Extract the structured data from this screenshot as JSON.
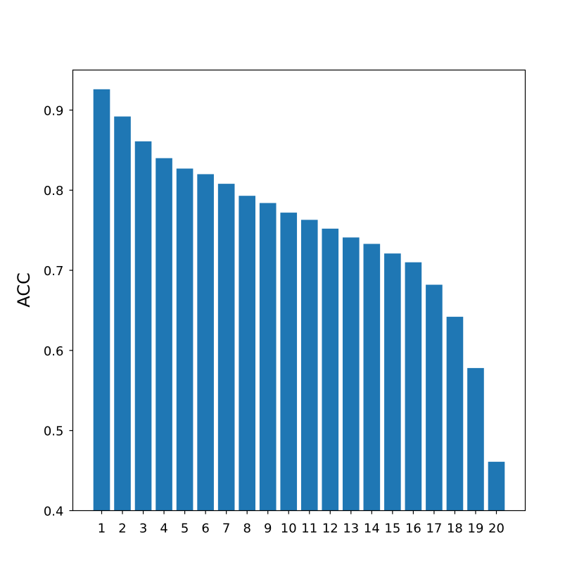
{
  "chart_data": {
    "type": "bar",
    "title": "",
    "xlabel": "",
    "ylabel": "ACC",
    "categories": [
      "1",
      "2",
      "3",
      "4",
      "5",
      "6",
      "7",
      "8",
      "9",
      "10",
      "11",
      "12",
      "13",
      "14",
      "15",
      "16",
      "17",
      "18",
      "19",
      "20"
    ],
    "values": [
      0.926,
      0.892,
      0.861,
      0.84,
      0.827,
      0.82,
      0.808,
      0.793,
      0.784,
      0.772,
      0.763,
      0.752,
      0.741,
      0.733,
      0.721,
      0.71,
      0.682,
      0.642,
      0.578,
      0.461
    ],
    "ylim": [
      0.4,
      0.95
    ],
    "yticks": [
      0.4,
      0.5,
      0.6,
      0.7,
      0.8,
      0.9
    ],
    "ytick_labels": [
      "0.4",
      "0.5",
      "0.6",
      "0.7",
      "0.8",
      "0.9"
    ],
    "grid": false,
    "bar_color": "#1f77b4"
  }
}
